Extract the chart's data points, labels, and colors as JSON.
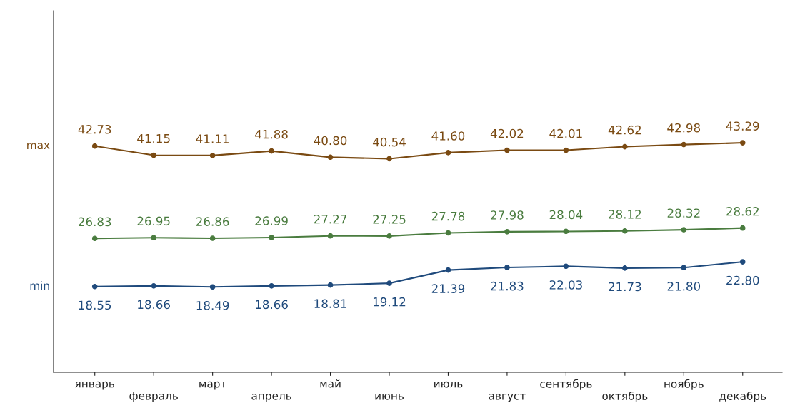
{
  "chart_data": {
    "type": "line",
    "categories": [
      "январь",
      "февраль",
      "март",
      "апрель",
      "май",
      "июнь",
      "июль",
      "август",
      "сентябрь",
      "октябрь",
      "ноябрь",
      "декабрь"
    ],
    "series": [
      {
        "name": "max",
        "color": "#7a4a12",
        "values": [
          42.73,
          41.15,
          41.11,
          41.88,
          40.8,
          40.54,
          41.6,
          42.02,
          42.01,
          42.62,
          42.98,
          43.29
        ],
        "value_labels": [
          "42.73",
          "41.15",
          "41.11",
          "41.88",
          "40.80",
          "40.54",
          "41.60",
          "42.02",
          "42.01",
          "42.62",
          "42.98",
          "43.29"
        ]
      },
      {
        "color": "#4a7c3f",
        "values": [
          26.83,
          26.95,
          26.86,
          26.99,
          27.27,
          27.25,
          27.78,
          27.98,
          28.04,
          28.12,
          28.32,
          28.62
        ],
        "value_labels": [
          "26.83",
          "26.95",
          "26.86",
          "26.99",
          "27.27",
          "27.25",
          "27.78",
          "27.98",
          "28.04",
          "28.12",
          "28.32",
          "28.62"
        ]
      },
      {
        "name": "min",
        "color": "#1f4a7c",
        "values": [
          18.55,
          18.66,
          18.49,
          18.66,
          18.81,
          19.12,
          21.39,
          21.83,
          22.03,
          21.73,
          21.8,
          22.8
        ],
        "value_labels": [
          "18.55",
          "18.66",
          "18.49",
          "18.66",
          "18.81",
          "19.12",
          "21.39",
          "21.83",
          "22.03",
          "21.73",
          "21.80",
          "22.80"
        ]
      }
    ],
    "ylim": [
      3.8,
      66
    ],
    "tick_labels": "x",
    "marker": "circle",
    "line_style": "solid",
    "grid": false,
    "legend": false
  }
}
